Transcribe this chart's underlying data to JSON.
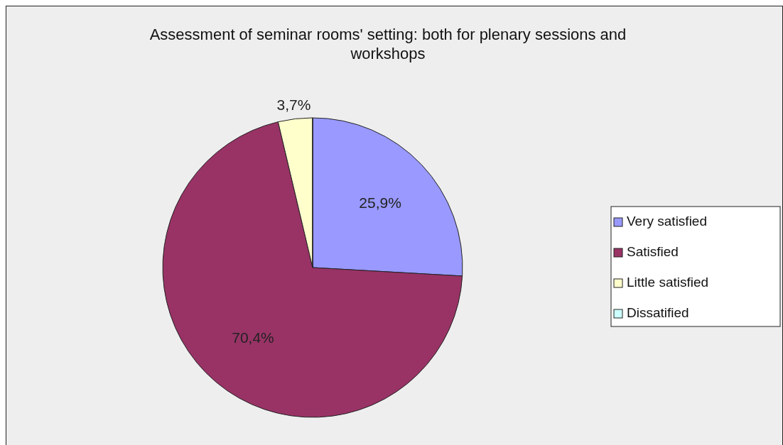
{
  "chart_data": {
    "type": "pie",
    "title": "Assessment of seminar rooms' setting: both for plenary sessions and workshops",
    "categories": [
      "Very satisfied",
      "Satisfied",
      "Little satisfied",
      "Dissatified"
    ],
    "values": [
      25.9,
      70.4,
      3.7,
      0
    ],
    "colors": [
      "#9999ff",
      "#993366",
      "#ffffcc",
      "#ccffff"
    ],
    "value_labels": [
      "25,9%",
      "70,4%",
      "3,7%",
      null
    ],
    "legend": "right"
  }
}
